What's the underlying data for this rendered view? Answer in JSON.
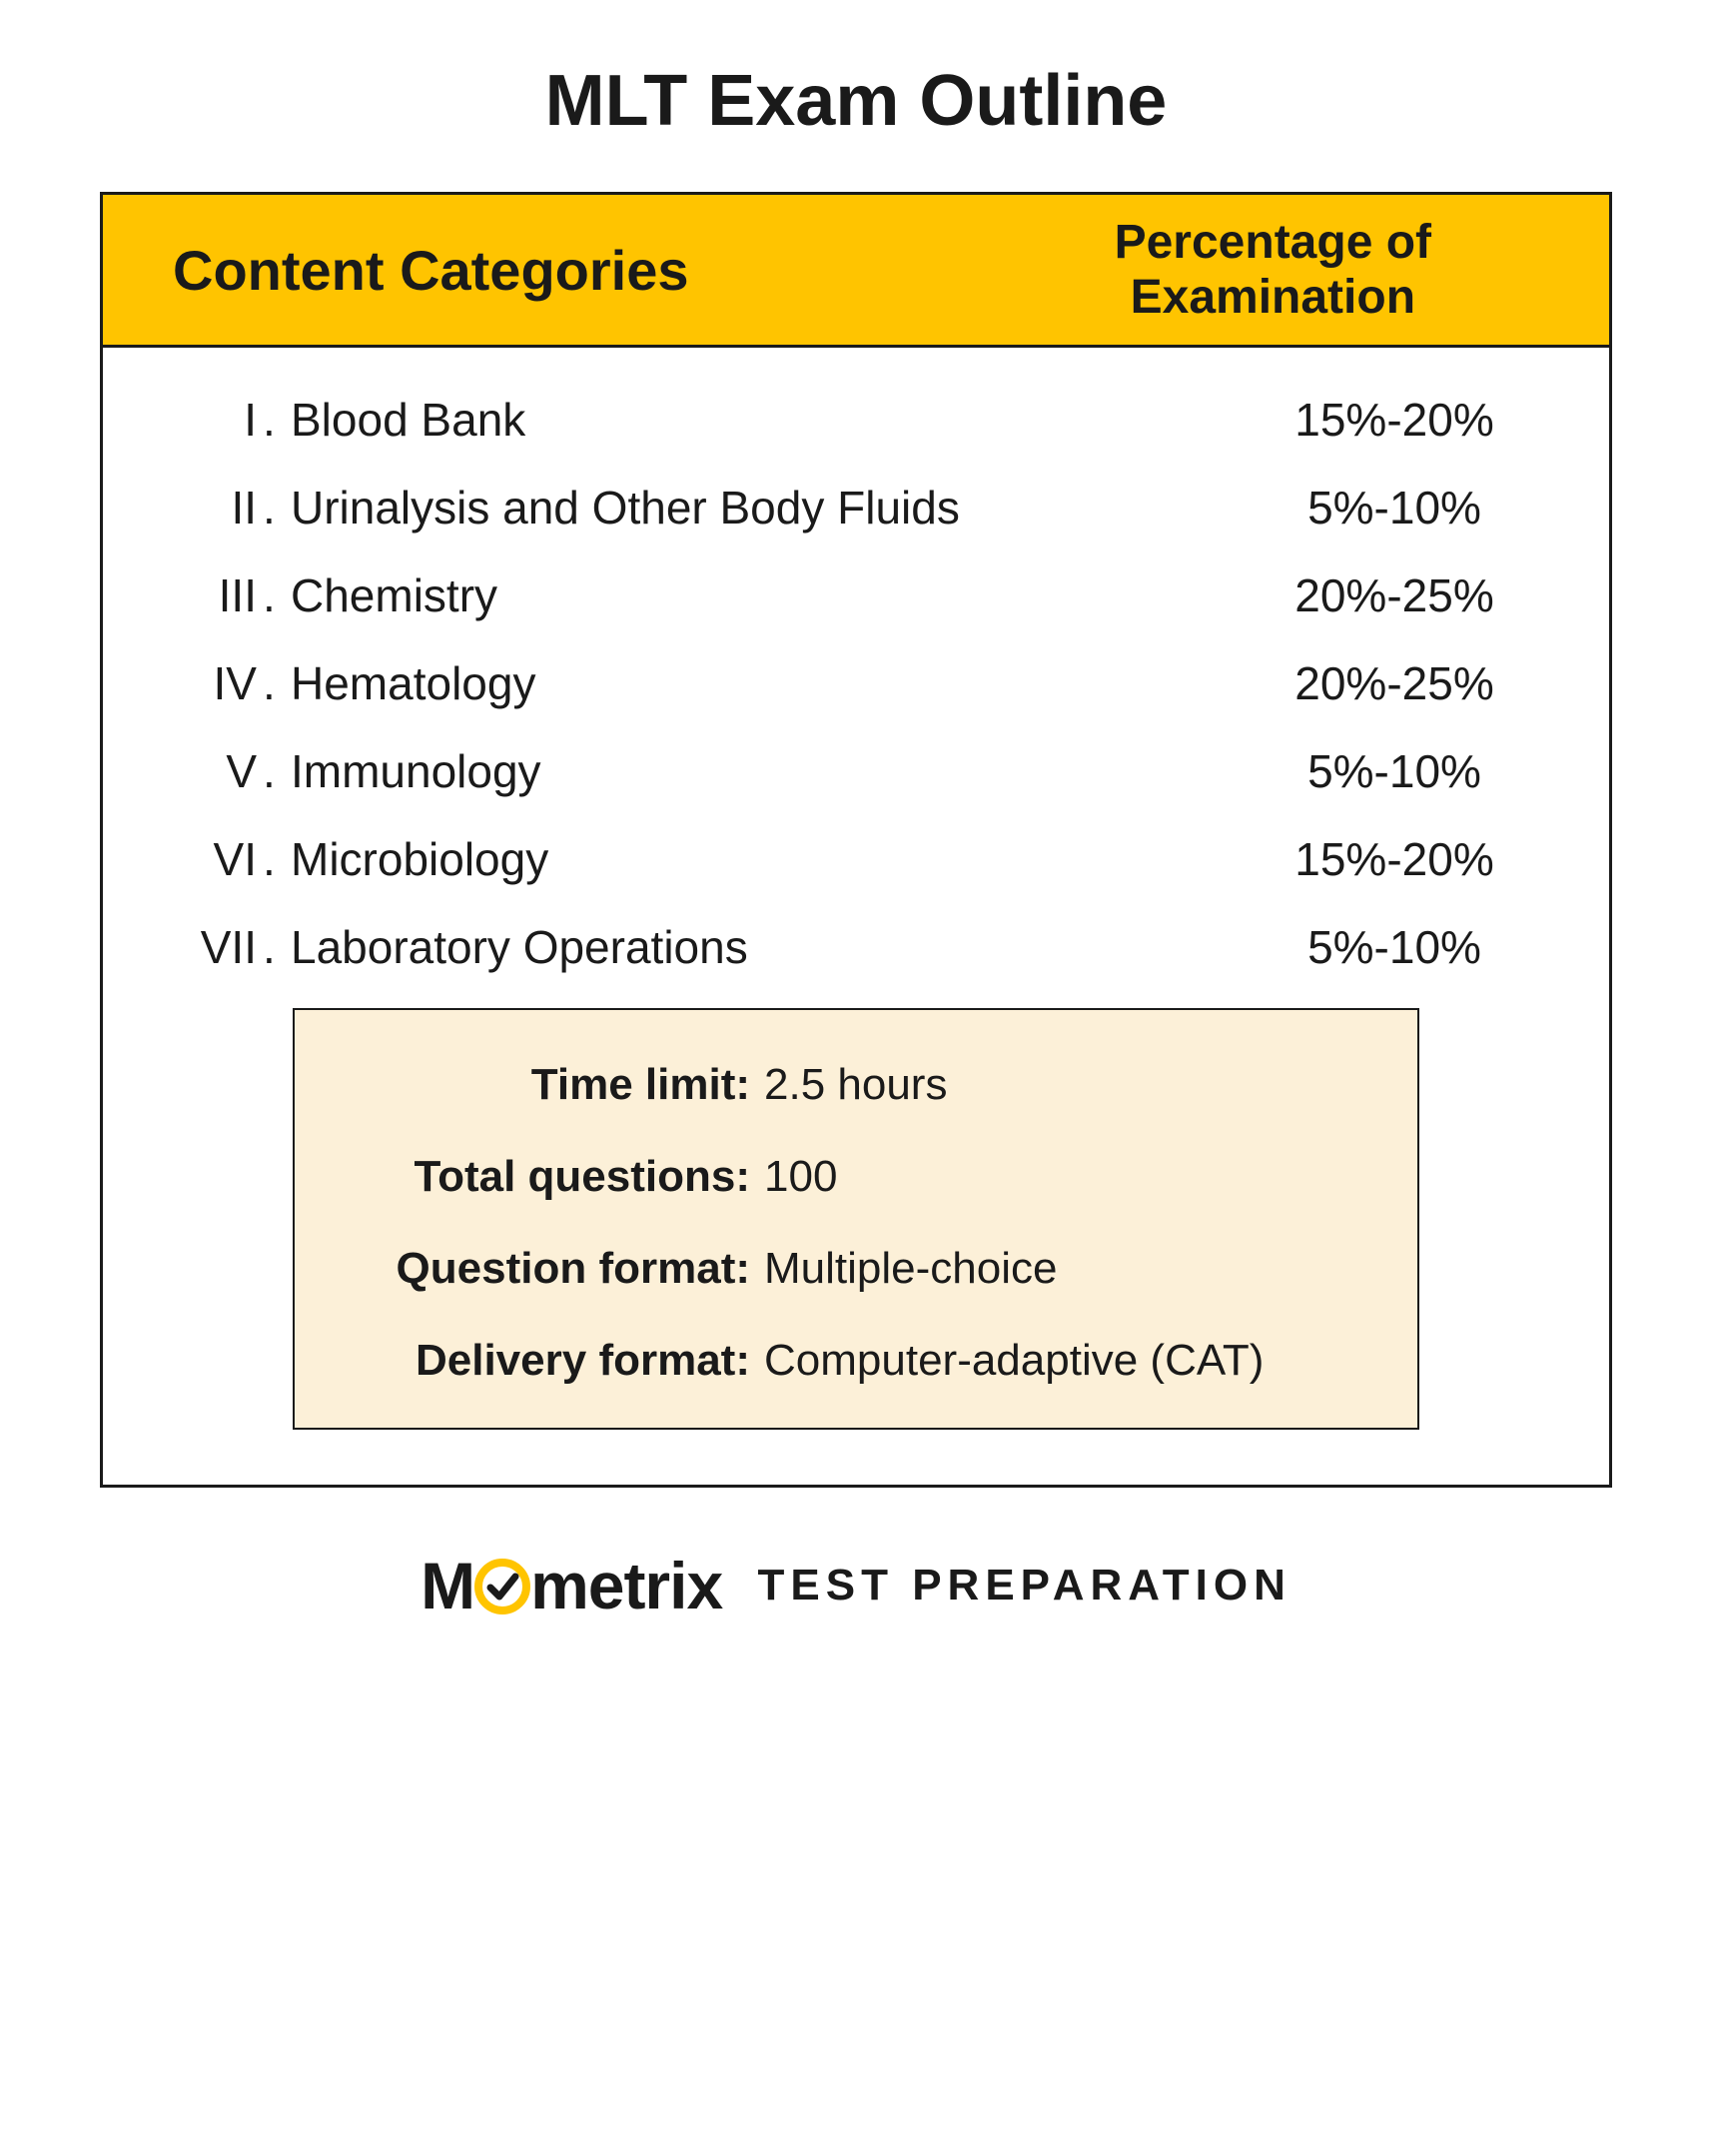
{
  "title": "MLT Exam Outline",
  "header": {
    "left": "Content Categories",
    "right": "Percentage of Examination"
  },
  "categories": [
    {
      "numeral": "I",
      "label": "Blood Bank",
      "percent": "15%-20%"
    },
    {
      "numeral": "II",
      "label": "Urinalysis and Other Body Fluids",
      "percent": "5%-10%"
    },
    {
      "numeral": "III",
      "label": "Chemistry",
      "percent": "20%-25%"
    },
    {
      "numeral": "IV",
      "label": "Hematology",
      "percent": "20%-25%"
    },
    {
      "numeral": "V",
      "label": "Immunology",
      "percent": "5%-10%"
    },
    {
      "numeral": "VI",
      "label": "Microbiology",
      "percent": "15%-20%"
    },
    {
      "numeral": "VII",
      "label": "Laboratory Operations",
      "percent": "5%-10%"
    }
  ],
  "info": [
    {
      "label": "Time limit:",
      "value": "2.5 hours"
    },
    {
      "label": "Total questions:",
      "value": "100"
    },
    {
      "label": "Question format:",
      "value": "Multiple-choice"
    },
    {
      "label": "Delivery format:",
      "value": "Computer-adaptive (CAT)"
    }
  ],
  "brand": {
    "prefix": "M",
    "name_rest": "metrix",
    "sub": "TEST  PREPARATION"
  },
  "colors": {
    "header_bg": "#ffc400",
    "info_bg": "#fcf0d8",
    "border": "#1a1a1a",
    "icon_ring": "#ffc400",
    "icon_check": "#1a1a1a",
    "background": "#ffffff"
  },
  "typography": {
    "title_fontsize": 72,
    "header_left_fontsize": 56,
    "header_right_fontsize": 48,
    "row_fontsize": 46,
    "info_fontsize": 44,
    "brand_main_fontsize": 66,
    "brand_sub_fontsize": 44
  }
}
